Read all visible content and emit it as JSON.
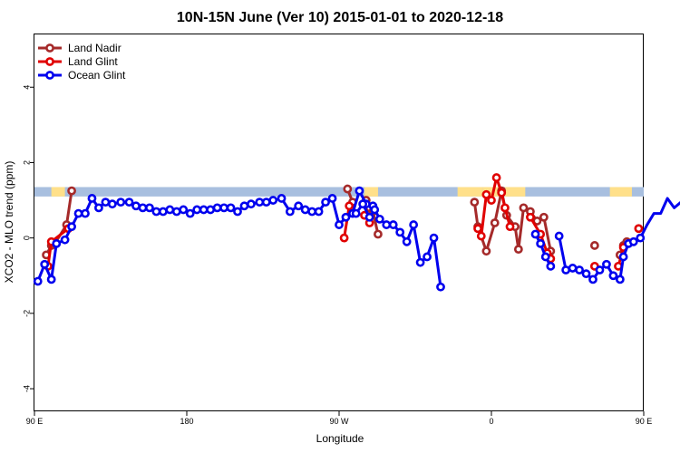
{
  "chart_data": {
    "type": "line",
    "title": "10N-15N June (Ver 10)   2015-01-01 to 2020-12-18",
    "xlabel": "Longitude",
    "ylabel": "XCO2 - MLO trend (ppm)",
    "xlim": [
      0,
      360
    ],
    "ylim": [
      -4.6,
      5.4
    ],
    "x_ticks": [
      {
        "x": 0,
        "label": "90 E"
      },
      {
        "x": 90,
        "label": "180"
      },
      {
        "x": 180,
        "label": "90 W"
      },
      {
        "x": 270,
        "label": "0"
      },
      {
        "x": 360,
        "label": "90 E"
      },
      {
        "x": 450,
        "label": "180"
      }
    ],
    "y_ticks": [
      {
        "y": -4,
        "label": "-4"
      },
      {
        "y": -2,
        "label": "-2"
      },
      {
        "y": 0,
        "label": "0"
      },
      {
        "y": 2,
        "label": "2"
      },
      {
        "y": 4,
        "label": "4"
      }
    ],
    "map_band": {
      "y_low": 1.1,
      "y_high": 1.35,
      "ocean_color": "#a8bfdf",
      "land_color": "#ffe08a",
      "land_segments": [
        [
          10,
          18
        ],
        [
          195,
          203
        ],
        [
          250,
          265
        ],
        [
          265,
          275
        ],
        [
          278,
          290
        ],
        [
          340,
          344
        ],
        [
          343,
          353
        ]
      ]
    },
    "legend": {
      "position": "top-left"
    },
    "series": [
      {
        "name": "Land Nadir",
        "color": "#a52a2a",
        "segments": [
          [
            [
              7,
              -0.45
            ],
            [
              10,
              -0.2
            ],
            [
              12,
              -0.15
            ],
            [
              19,
              0.35
            ],
            [
              22,
              1.25
            ]
          ],
          [
            [
              185,
              1.3
            ],
            [
              188,
              0.95
            ]
          ],
          [
            [
              196,
              1.0
            ],
            [
              198,
              0.8
            ],
            [
              200,
              0.7
            ],
            [
              203,
              0.1
            ]
          ],
          [
            [
              260,
              0.95
            ],
            [
              262,
              0.3
            ],
            [
              267,
              -0.35
            ],
            [
              272,
              0.4
            ],
            [
              276,
              1.25
            ],
            [
              279,
              0.6
            ],
            [
              284,
              0.3
            ],
            [
              286,
              -0.3
            ],
            [
              289,
              0.8
            ],
            [
              293,
              0.7
            ],
            [
              297,
              0.45
            ],
            [
              301,
              0.55
            ],
            [
              305,
              -0.35
            ]
          ],
          [
            [
              346,
              -0.45
            ],
            [
              348,
              -0.2
            ],
            [
              350,
              -0.1
            ]
          ],
          [
            [
              331,
              -0.2
            ]
          ],
          [
            [
              370,
              1.25
            ]
          ]
        ]
      },
      {
        "name": "Land Glint",
        "color": "#e00000",
        "segments": [
          [
            [
              8,
              -0.75
            ],
            [
              10,
              -0.1
            ],
            [
              20,
              0.25
            ]
          ],
          [
            [
              183,
              0.0
            ],
            [
              186,
              0.85
            ]
          ],
          [
            [
              195,
              0.6
            ],
            [
              198,
              0.4
            ]
          ],
          [
            [
              262,
              0.25
            ],
            [
              264,
              0.05
            ],
            [
              267,
              1.15
            ],
            [
              270,
              1.0
            ],
            [
              273,
              1.6
            ],
            [
              276,
              1.2
            ],
            [
              278,
              0.8
            ],
            [
              281,
              0.3
            ]
          ],
          [
            [
              293,
              0.55
            ],
            [
              299,
              0.1
            ],
            [
              303,
              -0.4
            ],
            [
              305,
              -0.55
            ]
          ],
          [
            [
              331,
              -0.75
            ]
          ],
          [
            [
              345,
              -0.75
            ],
            [
              348,
              -0.25
            ]
          ],
          [
            [
              357,
              0.25
            ]
          ]
        ]
      },
      {
        "name": "Ocean Glint",
        "color": "#0000ee",
        "segments": [
          [
            [
              2,
              -1.15
            ],
            [
              6,
              -0.7
            ],
            [
              10,
              -1.1
            ],
            [
              13,
              -0.15
            ],
            [
              18,
              -0.05
            ],
            [
              22,
              0.3
            ],
            [
              26,
              0.65
            ],
            [
              30,
              0.65
            ],
            [
              34,
              1.05
            ],
            [
              38,
              0.8
            ],
            [
              42,
              0.95
            ],
            [
              46,
              0.9
            ],
            [
              51,
              0.95
            ],
            [
              56,
              0.95
            ],
            [
              60,
              0.85
            ],
            [
              64,
              0.8
            ],
            [
              68,
              0.8
            ],
            [
              72,
              0.7
            ],
            [
              76,
              0.7
            ],
            [
              80,
              0.75
            ],
            [
              84,
              0.7
            ],
            [
              88,
              0.75
            ],
            [
              92,
              0.65
            ],
            [
              96,
              0.75
            ],
            [
              100,
              0.75
            ],
            [
              104,
              0.75
            ],
            [
              108,
              0.8
            ],
            [
              112,
              0.8
            ],
            [
              116,
              0.8
            ],
            [
              120,
              0.7
            ],
            [
              124,
              0.85
            ],
            [
              128,
              0.9
            ],
            [
              133,
              0.95
            ],
            [
              137,
              0.95
            ],
            [
              141,
              1.0
            ],
            [
              146,
              1.05
            ],
            [
              151,
              0.7
            ],
            [
              156,
              0.85
            ],
            [
              160,
              0.75
            ],
            [
              164,
              0.7
            ],
            [
              168,
              0.7
            ],
            [
              172,
              0.95
            ],
            [
              176,
              1.05
            ],
            [
              180,
              0.35
            ],
            [
              184,
              0.55
            ],
            [
              188,
              0.65
            ],
            [
              192,
              1.25
            ],
            [
              196,
              0.9
            ],
            [
              200,
              0.85
            ],
            [
              204,
              0.5
            ],
            [
              208,
              0.35
            ],
            [
              212,
              0.35
            ],
            [
              216,
              0.15
            ],
            [
              220,
              -0.1
            ],
            [
              224,
              0.35
            ],
            [
              228,
              -0.65
            ],
            [
              232,
              -0.5
            ],
            [
              236,
              0.0
            ],
            [
              240,
              -1.3
            ]
          ],
          [
            [
              190,
              0.65
            ],
            [
              194,
              0.9
            ],
            [
              198,
              0.55
            ],
            [
              201,
              0.75
            ]
          ],
          [
            [
              296,
              0.1
            ],
            [
              299,
              -0.15
            ],
            [
              302,
              -0.5
            ],
            [
              305,
              -0.75
            ]
          ],
          [
            [
              310,
              0.05
            ],
            [
              314,
              -0.85
            ],
            [
              318,
              -0.8
            ],
            [
              322,
              -0.85
            ],
            [
              326,
              -0.95
            ],
            [
              330,
              -1.1
            ],
            [
              334,
              -0.85
            ],
            [
              338,
              -0.7
            ],
            [
              342,
              -1.0
            ],
            [
              346,
              -1.1
            ],
            [
              348,
              -0.5
            ],
            [
              351,
              -0.15
            ],
            [
              354,
              -0.1
            ],
            [
              358,
              0.0
            ],
            [
              362,
              0.35
            ],
            [
              366,
              0.65
            ],
            [
              370,
              0.65
            ],
            [
              374,
              1.05
            ],
            [
              378,
              0.8
            ],
            [
              382,
              0.95
            ],
            [
              386,
              0.85
            ],
            [
              390,
              0.95
            ],
            [
              394,
              1.0
            ],
            [
              398,
              0.85
            ],
            [
              402,
              0.8
            ],
            [
              406,
              0.8
            ]
          ]
        ]
      }
    ]
  }
}
